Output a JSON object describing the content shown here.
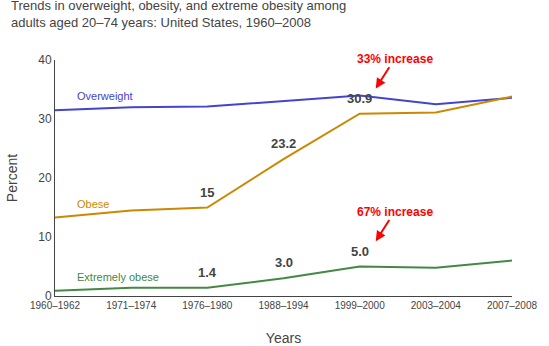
{
  "chart_data": {
    "type": "line",
    "title": "Trends in overweight, obesity, and extreme obesity among",
    "subtitle": "adults aged 20–74 years: United States, 1960–2008",
    "xlabel": "Years",
    "ylabel": "Percent",
    "categories": [
      "1960–1962",
      "1971–1974",
      "1976–1980",
      "1988–1994",
      "1999–2000",
      "2003–2004",
      "2007–2008"
    ],
    "series": [
      {
        "name": "Overweight",
        "color": "#4444cc",
        "values": [
          31.5,
          32.0,
          32.1,
          33.0,
          34.0,
          32.5,
          33.6
        ]
      },
      {
        "name": "Obese",
        "color": "#cc8800",
        "values": [
          13.3,
          14.5,
          15.0,
          23.2,
          30.9,
          31.1,
          33.8
        ]
      },
      {
        "name": "Extremely obese",
        "color": "#448844",
        "values": [
          0.9,
          1.4,
          1.4,
          3.0,
          5.0,
          4.8,
          6.0
        ]
      }
    ],
    "ylim": [
      0,
      40
    ],
    "yticks": [
      0,
      10,
      20,
      30,
      40
    ],
    "grid": false,
    "annotations": [
      {
        "text": "15",
        "x": "1976–1980",
        "series": "Obese"
      },
      {
        "text": "1.4",
        "x": "1976–1980",
        "series": "Extremely obese"
      },
      {
        "text": "23.2",
        "x": "1988–1994",
        "series": "Obese"
      },
      {
        "text": "30.9",
        "x": "1999–2000",
        "series": "Obese"
      },
      {
        "text": "3.0",
        "x": "1988–1994",
        "series": "Extremely obese"
      },
      {
        "text": "5.0",
        "x": "1999–2000",
        "series": "Extremely obese"
      },
      {
        "text": "33% increase",
        "x": "1999–2000",
        "series": "Obese",
        "color": "red",
        "arrow": true
      },
      {
        "text": "67% increase",
        "x": "1999–2000",
        "series": "Extremely obese",
        "color": "red",
        "arrow": true
      }
    ]
  }
}
